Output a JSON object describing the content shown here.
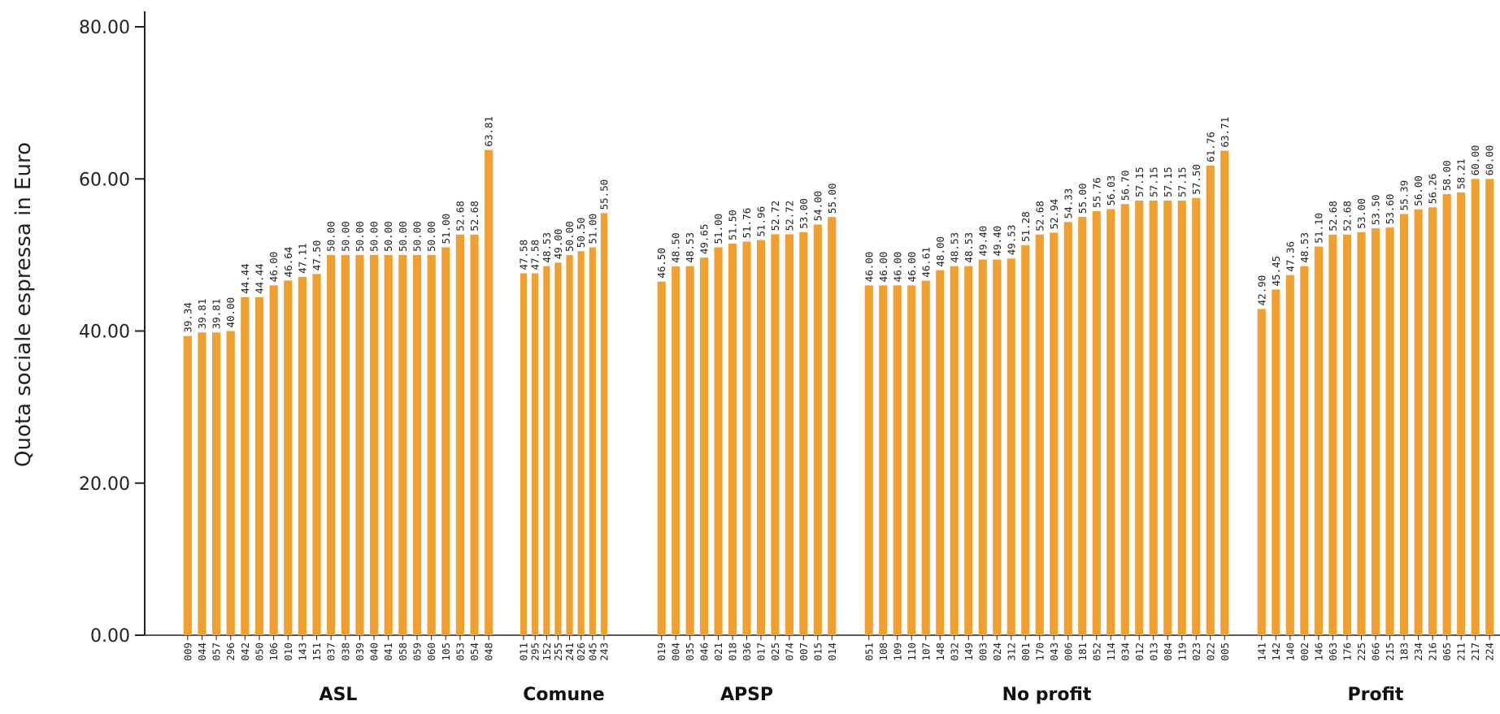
{
  "chart_data": {
    "type": "bar",
    "ylabel": "Quota sociale espressa in Euro",
    "ylim": [
      0,
      80
    ],
    "yticks": [
      "0.00",
      "20.00",
      "40.00",
      "60.00",
      "80.00"
    ],
    "ytick_values": [
      0,
      20,
      40,
      60,
      80
    ],
    "bar_color": "#f0a030",
    "groups": [
      {
        "name": "ASL",
        "categories": [
          "009",
          "044",
          "057",
          "296",
          "042",
          "050",
          "106",
          "010",
          "143",
          "151",
          "037",
          "038",
          "039",
          "040",
          "041",
          "058",
          "059",
          "060",
          "105",
          "053",
          "054",
          "048"
        ],
        "values": [
          39.34,
          39.81,
          39.81,
          40.0,
          44.44,
          44.44,
          46.0,
          46.64,
          47.11,
          47.5,
          50.0,
          50.0,
          50.0,
          50.0,
          50.0,
          50.0,
          50.0,
          50.0,
          51.0,
          52.68,
          52.68,
          63.81
        ],
        "value_labels": [
          "39.34",
          "39.81",
          "39.81",
          "40.00",
          "44.44",
          "44.44",
          "46.00",
          "46.64",
          "47.11",
          "47.50",
          "50.00",
          "50.00",
          "50.00",
          "50.00",
          "50.00",
          "50.00",
          "50.00",
          "50.00",
          "51.00",
          "52.68",
          "52.68",
          "63.81"
        ]
      },
      {
        "name": "Comune",
        "categories": [
          "011",
          "295",
          "152",
          "255",
          "241",
          "026",
          "045",
          "243"
        ],
        "values": [
          47.58,
          47.58,
          48.53,
          49.0,
          50.0,
          50.5,
          51.0,
          55.5
        ],
        "value_labels": [
          "47.58",
          "47.58",
          "48.53",
          "49.00",
          "50.00",
          "50.50",
          "51.00",
          "55.50"
        ]
      },
      {
        "name": "APSP",
        "categories": [
          "019",
          "004",
          "035",
          "046",
          "021",
          "018",
          "036",
          "017",
          "025",
          "074",
          "007",
          "015",
          "014"
        ],
        "values": [
          46.5,
          48.5,
          48.53,
          49.65,
          51.0,
          51.5,
          51.76,
          51.96,
          52.72,
          52.72,
          53.0,
          54.0,
          55.0
        ],
        "value_labels": [
          "46.50",
          "48.50",
          "48.53",
          "49.65",
          "51.00",
          "51.50",
          "51.76",
          "51.96",
          "52.72",
          "52.72",
          "53.00",
          "54.00",
          "55.00"
        ]
      },
      {
        "name": "No profit",
        "categories": [
          "051",
          "108",
          "109",
          "110",
          "107",
          "148",
          "032",
          "149",
          "003",
          "024",
          "312",
          "001",
          "170",
          "043",
          "006",
          "181",
          "052",
          "114",
          "034",
          "012",
          "013",
          "084",
          "119",
          "023",
          "022",
          "005"
        ],
        "values": [
          46.0,
          46.0,
          46.0,
          46.0,
          46.61,
          48.0,
          48.53,
          48.53,
          49.4,
          49.4,
          49.53,
          51.28,
          52.68,
          52.94,
          54.33,
          55.0,
          55.76,
          56.03,
          56.7,
          57.15,
          57.15,
          57.15,
          57.15,
          57.5,
          61.76,
          63.71
        ],
        "value_labels": [
          "46.00",
          "46.00",
          "46.00",
          "46.00",
          "46.61",
          "48.00",
          "48.53",
          "48.53",
          "49.40",
          "49.40",
          "49.53",
          "51.28",
          "52.68",
          "52.94",
          "54.33",
          "55.00",
          "55.76",
          "56.03",
          "56.70",
          "57.15",
          "57.15",
          "57.15",
          "57.15",
          "57.50",
          "61.76",
          "63.71"
        ]
      },
      {
        "name": "Profit",
        "categories": [
          "141",
          "142",
          "140",
          "002",
          "146",
          "063",
          "176",
          "225",
          "066",
          "215",
          "183",
          "234",
          "216",
          "065",
          "211",
          "217",
          "224"
        ],
        "values": [
          42.9,
          45.45,
          47.36,
          48.53,
          51.1,
          52.68,
          52.68,
          53.0,
          53.5,
          53.6,
          55.39,
          56.0,
          56.26,
          58.0,
          58.21,
          60.0,
          60.0
        ],
        "value_labels": [
          "42.90",
          "45.45",
          "47.36",
          "48.53",
          "51.10",
          "52.68",
          "52.68",
          "53.00",
          "53.50",
          "53.60",
          "55.39",
          "56.00",
          "56.26",
          "58.00",
          "58.21",
          "60.00",
          "60.00"
        ]
      }
    ]
  }
}
